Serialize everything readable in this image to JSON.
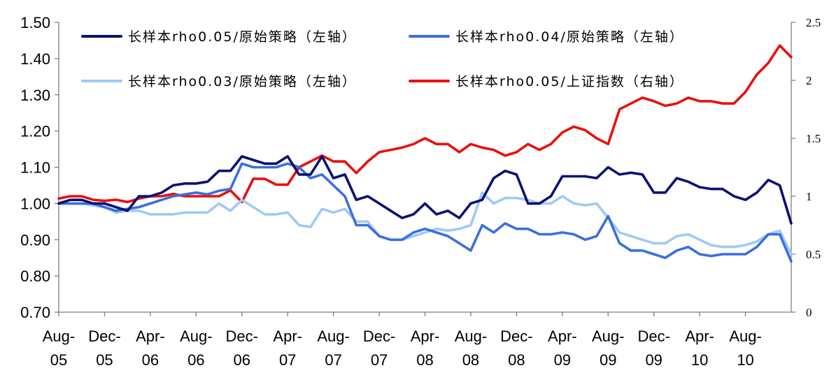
{
  "chart_data": {
    "type": "line",
    "title": "",
    "xlabel": "",
    "ylabel": "",
    "x_ticks": [
      {
        "top": "Aug-",
        "bottom": "05",
        "date": "2005-08"
      },
      {
        "top": "Dec-",
        "bottom": "05",
        "date": "2005-12"
      },
      {
        "top": "Apr-",
        "bottom": "06",
        "date": "2006-04"
      },
      {
        "top": "Aug-",
        "bottom": "06",
        "date": "2006-08"
      },
      {
        "top": "Dec-",
        "bottom": "06",
        "date": "2006-12"
      },
      {
        "top": "Apr-",
        "bottom": "07",
        "date": "2007-04"
      },
      {
        "top": "Aug-",
        "bottom": "07",
        "date": "2007-08"
      },
      {
        "top": "Dec-",
        "bottom": "07",
        "date": "2007-12"
      },
      {
        "top": "Apr-",
        "bottom": "08",
        "date": "2008-04"
      },
      {
        "top": "Aug-",
        "bottom": "08",
        "date": "2008-08"
      },
      {
        "top": "Dec-",
        "bottom": "08",
        "date": "2008-12"
      },
      {
        "top": "Apr-",
        "bottom": "09",
        "date": "2009-04"
      },
      {
        "top": "Aug-",
        "bottom": "09",
        "date": "2009-08"
      },
      {
        "top": "Dec-",
        "bottom": "09",
        "date": "2009-12"
      },
      {
        "top": "Apr-",
        "bottom": "10",
        "date": "2010-04"
      },
      {
        "top": "Aug-",
        "bottom": "10",
        "date": "2010-08"
      }
    ],
    "x_range": [
      "2005-08",
      "2010-12"
    ],
    "y_left": {
      "range": [
        0.7,
        1.5
      ],
      "ticks": [
        "0.70",
        "0.80",
        "0.90",
        "1.00",
        "1.10",
        "1.20",
        "1.30",
        "1.40",
        "1.50"
      ]
    },
    "y_right": {
      "range": [
        0,
        2.5
      ],
      "ticks": [
        "0",
        "0.5",
        "1",
        "1.5",
        "2",
        "2.5"
      ]
    },
    "grid": false,
    "legend_position": "top",
    "series": [
      {
        "name": "长样本rho0.05/原始策略（左轴）",
        "axis": "left",
        "color": "#0a1172",
        "points": [
          [
            "2005-08",
            1.0
          ],
          [
            "2005-09",
            1.01
          ],
          [
            "2005-10",
            1.01
          ],
          [
            "2005-11",
            1.0
          ],
          [
            "2005-12",
            1.0
          ],
          [
            "2006-01",
            0.99
          ],
          [
            "2006-02",
            0.98
          ],
          [
            "2006-03",
            1.02
          ],
          [
            "2006-04",
            1.02
          ],
          [
            "2006-05",
            1.03
          ],
          [
            "2006-06",
            1.05
          ],
          [
            "2006-07",
            1.055
          ],
          [
            "2006-08",
            1.055
          ],
          [
            "2006-09",
            1.06
          ],
          [
            "2006-10",
            1.09
          ],
          [
            "2006-11",
            1.09
          ],
          [
            "2006-12",
            1.13
          ],
          [
            "2007-01",
            1.12
          ],
          [
            "2007-02",
            1.11
          ],
          [
            "2007-03",
            1.11
          ],
          [
            "2007-04",
            1.13
          ],
          [
            "2007-05",
            1.08
          ],
          [
            "2007-06",
            1.08
          ],
          [
            "2007-07",
            1.13
          ],
          [
            "2007-08",
            1.07
          ],
          [
            "2007-09",
            1.08
          ],
          [
            "2007-10",
            1.01
          ],
          [
            "2007-11",
            1.02
          ],
          [
            "2007-12",
            1.0
          ],
          [
            "2008-01",
            0.98
          ],
          [
            "2008-02",
            0.96
          ],
          [
            "2008-03",
            0.97
          ],
          [
            "2008-04",
            1.0
          ],
          [
            "2008-05",
            0.97
          ],
          [
            "2008-06",
            0.98
          ],
          [
            "2008-07",
            0.96
          ],
          [
            "2008-08",
            1.0
          ],
          [
            "2008-09",
            1.01
          ],
          [
            "2008-10",
            1.07
          ],
          [
            "2008-11",
            1.09
          ],
          [
            "2008-12",
            1.08
          ],
          [
            "2009-01",
            1.0
          ],
          [
            "2009-02",
            1.0
          ],
          [
            "2009-03",
            1.02
          ],
          [
            "2009-04",
            1.075
          ],
          [
            "2009-05",
            1.075
          ],
          [
            "2009-06",
            1.075
          ],
          [
            "2009-07",
            1.07
          ],
          [
            "2009-08",
            1.1
          ],
          [
            "2009-09",
            1.08
          ],
          [
            "2009-10",
            1.085
          ],
          [
            "2009-11",
            1.08
          ],
          [
            "2009-12",
            1.03
          ],
          [
            "2010-01",
            1.03
          ],
          [
            "2010-02",
            1.07
          ],
          [
            "2010-03",
            1.06
          ],
          [
            "2010-04",
            1.045
          ],
          [
            "2010-05",
            1.04
          ],
          [
            "2010-06",
            1.04
          ],
          [
            "2010-07",
            1.02
          ],
          [
            "2010-08",
            1.01
          ],
          [
            "2010-09",
            1.03
          ],
          [
            "2010-10",
            1.065
          ],
          [
            "2010-11",
            1.05
          ],
          [
            "2010-12",
            0.945
          ]
        ]
      },
      {
        "name": "长样本rho0.04/原始策略（左轴）",
        "axis": "left",
        "color": "#3a6fe0",
        "points": [
          [
            "2005-08",
            1.0
          ],
          [
            "2005-09",
            1.0
          ],
          [
            "2005-10",
            1.0
          ],
          [
            "2005-11",
            1.0
          ],
          [
            "2005-12",
            0.99
          ],
          [
            "2006-01",
            0.98
          ],
          [
            "2006-02",
            0.985
          ],
          [
            "2006-03",
            0.99
          ],
          [
            "2006-04",
            1.0
          ],
          [
            "2006-05",
            1.01
          ],
          [
            "2006-06",
            1.02
          ],
          [
            "2006-07",
            1.025
          ],
          [
            "2006-08",
            1.03
          ],
          [
            "2006-09",
            1.025
          ],
          [
            "2006-10",
            1.035
          ],
          [
            "2006-11",
            1.04
          ],
          [
            "2006-12",
            1.11
          ],
          [
            "2007-01",
            1.1
          ],
          [
            "2007-02",
            1.1
          ],
          [
            "2007-03",
            1.1
          ],
          [
            "2007-04",
            1.11
          ],
          [
            "2007-05",
            1.1
          ],
          [
            "2007-06",
            1.07
          ],
          [
            "2007-07",
            1.08
          ],
          [
            "2007-08",
            1.05
          ],
          [
            "2007-09",
            1.02
          ],
          [
            "2007-10",
            0.94
          ],
          [
            "2007-11",
            0.94
          ],
          [
            "2007-12",
            0.91
          ],
          [
            "2008-01",
            0.9
          ],
          [
            "2008-02",
            0.9
          ],
          [
            "2008-03",
            0.92
          ],
          [
            "2008-04",
            0.93
          ],
          [
            "2008-05",
            0.92
          ],
          [
            "2008-06",
            0.91
          ],
          [
            "2008-07",
            0.89
          ],
          [
            "2008-08",
            0.87
          ],
          [
            "2008-09",
            0.94
          ],
          [
            "2008-10",
            0.92
          ],
          [
            "2008-11",
            0.945
          ],
          [
            "2008-12",
            0.93
          ],
          [
            "2009-01",
            0.93
          ],
          [
            "2009-02",
            0.915
          ],
          [
            "2009-03",
            0.915
          ],
          [
            "2009-04",
            0.92
          ],
          [
            "2009-05",
            0.915
          ],
          [
            "2009-06",
            0.9
          ],
          [
            "2009-07",
            0.91
          ],
          [
            "2009-08",
            0.965
          ],
          [
            "2009-09",
            0.89
          ],
          [
            "2009-10",
            0.87
          ],
          [
            "2009-11",
            0.87
          ],
          [
            "2009-12",
            0.86
          ],
          [
            "2010-01",
            0.85
          ],
          [
            "2010-02",
            0.87
          ],
          [
            "2010-03",
            0.88
          ],
          [
            "2010-04",
            0.86
          ],
          [
            "2010-05",
            0.855
          ],
          [
            "2010-06",
            0.86
          ],
          [
            "2010-07",
            0.86
          ],
          [
            "2010-08",
            0.86
          ],
          [
            "2010-09",
            0.88
          ],
          [
            "2010-10",
            0.915
          ],
          [
            "2010-11",
            0.915
          ],
          [
            "2010-12",
            0.84
          ]
        ]
      },
      {
        "name": "长样本rho0.03/原始策略（左轴）",
        "axis": "left",
        "color": "#9fcaf5",
        "points": [
          [
            "2005-08",
            1.0
          ],
          [
            "2005-09",
            1.0
          ],
          [
            "2005-10",
            1.0
          ],
          [
            "2005-11",
            0.995
          ],
          [
            "2005-12",
            0.99
          ],
          [
            "2006-01",
            0.975
          ],
          [
            "2006-02",
            0.98
          ],
          [
            "2006-03",
            0.98
          ],
          [
            "2006-04",
            0.97
          ],
          [
            "2006-05",
            0.97
          ],
          [
            "2006-06",
            0.97
          ],
          [
            "2006-07",
            0.975
          ],
          [
            "2006-08",
            0.975
          ],
          [
            "2006-09",
            0.975
          ],
          [
            "2006-10",
            1.0
          ],
          [
            "2006-11",
            0.98
          ],
          [
            "2006-12",
            1.01
          ],
          [
            "2007-01",
            0.99
          ],
          [
            "2007-02",
            0.97
          ],
          [
            "2007-03",
            0.97
          ],
          [
            "2007-04",
            0.975
          ],
          [
            "2007-05",
            0.94
          ],
          [
            "2007-06",
            0.935
          ],
          [
            "2007-07",
            0.985
          ],
          [
            "2007-08",
            0.975
          ],
          [
            "2007-09",
            0.985
          ],
          [
            "2007-10",
            0.95
          ],
          [
            "2007-11",
            0.95
          ],
          [
            "2007-12",
            0.91
          ],
          [
            "2008-01",
            0.9
          ],
          [
            "2008-02",
            0.9
          ],
          [
            "2008-03",
            0.91
          ],
          [
            "2008-04",
            0.92
          ],
          [
            "2008-05",
            0.93
          ],
          [
            "2008-06",
            0.925
          ],
          [
            "2008-07",
            0.93
          ],
          [
            "2008-08",
            0.94
          ],
          [
            "2008-09",
            1.03
          ],
          [
            "2008-10",
            1.0
          ],
          [
            "2008-11",
            1.015
          ],
          [
            "2008-12",
            1.015
          ],
          [
            "2009-01",
            1.01
          ],
          [
            "2009-02",
            1.0
          ],
          [
            "2009-03",
            1.0
          ],
          [
            "2009-04",
            1.02
          ],
          [
            "2009-05",
            1.0
          ],
          [
            "2009-06",
            0.995
          ],
          [
            "2009-07",
            1.0
          ],
          [
            "2009-08",
            0.96
          ],
          [
            "2009-09",
            0.92
          ],
          [
            "2009-10",
            0.91
          ],
          [
            "2009-11",
            0.9
          ],
          [
            "2009-12",
            0.89
          ],
          [
            "2010-01",
            0.89
          ],
          [
            "2010-02",
            0.91
          ],
          [
            "2010-03",
            0.915
          ],
          [
            "2010-04",
            0.9
          ],
          [
            "2010-05",
            0.885
          ],
          [
            "2010-06",
            0.88
          ],
          [
            "2010-07",
            0.88
          ],
          [
            "2010-08",
            0.885
          ],
          [
            "2010-09",
            0.895
          ],
          [
            "2010-10",
            0.915
          ],
          [
            "2010-11",
            0.925
          ],
          [
            "2010-12",
            0.86
          ]
        ]
      },
      {
        "name": "长样本rho0.05/上证指数（右轴）",
        "axis": "right",
        "color": "#e8100c",
        "points": [
          [
            "2005-08",
            0.98
          ],
          [
            "2005-09",
            1.0
          ],
          [
            "2005-10",
            1.0
          ],
          [
            "2005-11",
            0.97
          ],
          [
            "2005-12",
            0.96
          ],
          [
            "2006-01",
            0.97
          ],
          [
            "2006-02",
            0.95
          ],
          [
            "2006-03",
            0.98
          ],
          [
            "2006-04",
            1.0
          ],
          [
            "2006-05",
            1.0
          ],
          [
            "2006-06",
            1.02
          ],
          [
            "2006-07",
            1.0
          ],
          [
            "2006-08",
            1.0
          ],
          [
            "2006-09",
            1.0
          ],
          [
            "2006-10",
            1.0
          ],
          [
            "2006-11",
            1.05
          ],
          [
            "2006-12",
            0.95
          ],
          [
            "2007-01",
            1.15
          ],
          [
            "2007-02",
            1.15
          ],
          [
            "2007-03",
            1.1
          ],
          [
            "2007-04",
            1.1
          ],
          [
            "2007-05",
            1.25
          ],
          [
            "2007-06",
            1.3
          ],
          [
            "2007-07",
            1.35
          ],
          [
            "2007-08",
            1.3
          ],
          [
            "2007-09",
            1.3
          ],
          [
            "2007-10",
            1.2
          ],
          [
            "2007-11",
            1.3
          ],
          [
            "2007-12",
            1.38
          ],
          [
            "2008-01",
            1.4
          ],
          [
            "2008-02",
            1.42
          ],
          [
            "2008-03",
            1.45
          ],
          [
            "2008-04",
            1.5
          ],
          [
            "2008-05",
            1.45
          ],
          [
            "2008-06",
            1.45
          ],
          [
            "2008-07",
            1.38
          ],
          [
            "2008-08",
            1.45
          ],
          [
            "2008-09",
            1.42
          ],
          [
            "2008-10",
            1.4
          ],
          [
            "2008-11",
            1.35
          ],
          [
            "2008-12",
            1.38
          ],
          [
            "2009-01",
            1.45
          ],
          [
            "2009-02",
            1.4
          ],
          [
            "2009-03",
            1.45
          ],
          [
            "2009-04",
            1.55
          ],
          [
            "2009-05",
            1.6
          ],
          [
            "2009-06",
            1.57
          ],
          [
            "2009-07",
            1.5
          ],
          [
            "2009-08",
            1.45
          ],
          [
            "2009-09",
            1.75
          ],
          [
            "2009-10",
            1.8
          ],
          [
            "2009-11",
            1.85
          ],
          [
            "2009-12",
            1.82
          ],
          [
            "2010-01",
            1.78
          ],
          [
            "2010-02",
            1.8
          ],
          [
            "2010-03",
            1.85
          ],
          [
            "2010-04",
            1.82
          ],
          [
            "2010-05",
            1.82
          ],
          [
            "2010-06",
            1.8
          ],
          [
            "2010-07",
            1.8
          ],
          [
            "2010-08",
            1.9
          ],
          [
            "2010-09",
            2.05
          ],
          [
            "2010-10",
            2.15
          ],
          [
            "2010-11",
            2.3
          ],
          [
            "2010-12",
            2.2
          ]
        ]
      }
    ]
  }
}
